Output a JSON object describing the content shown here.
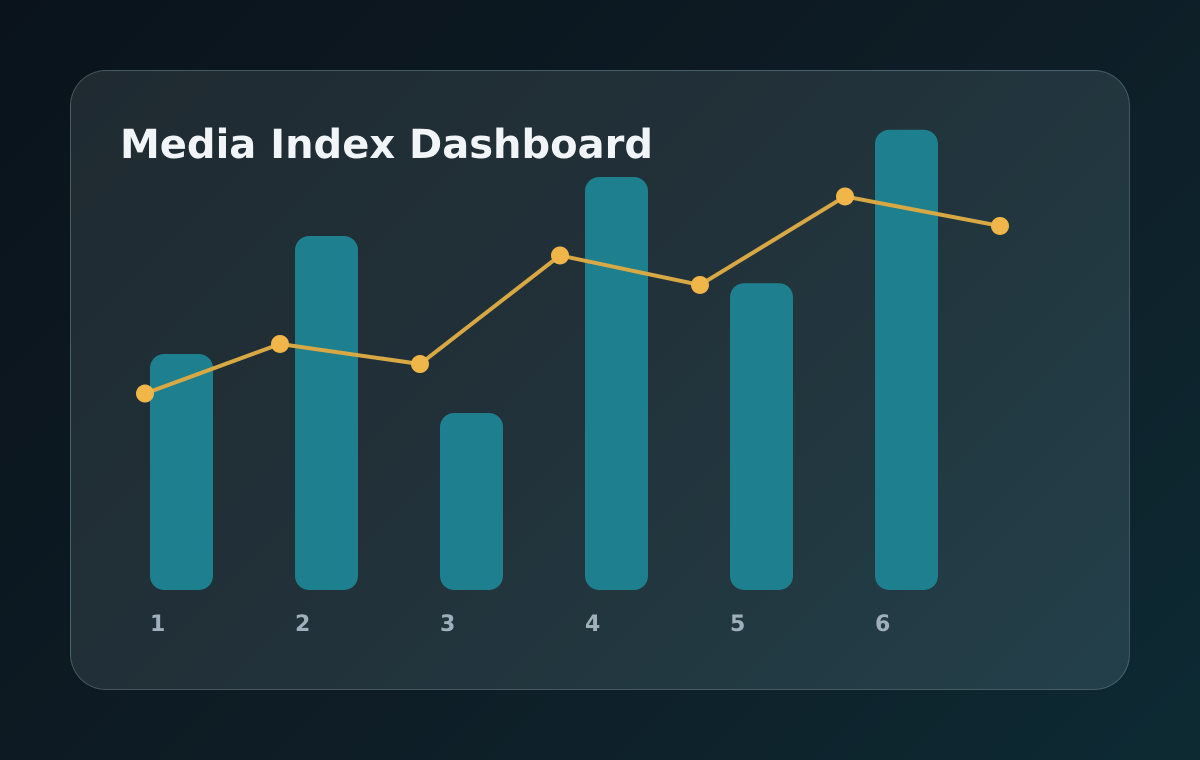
{
  "colors": {
    "bar": "#1e7f8e",
    "line": "#d8a845",
    "point": "#f0b64a",
    "tick_text": "#9fb0bc",
    "title_text": "#f2f5f7"
  },
  "chart_data": {
    "type": "bar",
    "title": "Media Index Dashboard",
    "xlabel": "",
    "ylabel": "",
    "categories": [
      "1",
      "2",
      "3",
      "4",
      "5",
      "6"
    ],
    "bar_values": [
      40,
      60,
      30,
      70,
      52,
      78
    ],
    "line_values": [
      33.3,
      41.7,
      38.3,
      56.7,
      51.7,
      66.7,
      61.7
    ],
    "ylim": [
      0,
      100
    ],
    "grid": false,
    "legend": "none"
  }
}
